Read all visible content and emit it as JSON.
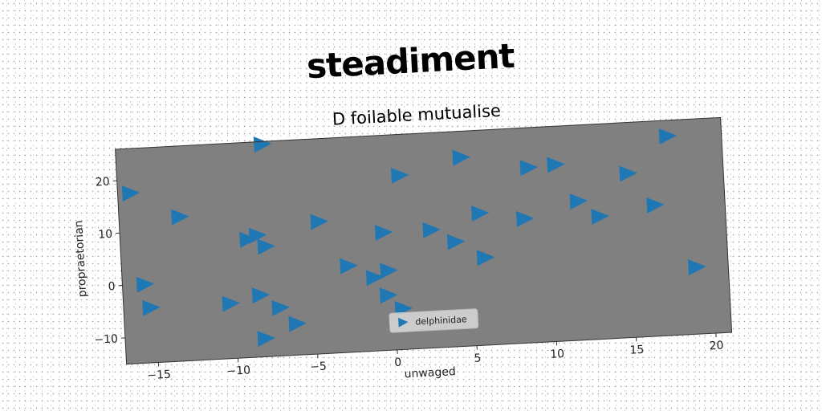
{
  "figure": {
    "suptitle": "steadiment"
  },
  "chart_data": {
    "type": "scatter",
    "title": "D foilable mutualise",
    "xlabel": "unwaged",
    "ylabel": "propraetorian",
    "xlim": [
      -17,
      21
    ],
    "ylim": [
      -15,
      26
    ],
    "xticks": [
      "−15",
      "−10",
      "−5",
      "0",
      "5",
      "10",
      "15",
      "20"
    ],
    "yticks": [
      "−10",
      "0",
      "10",
      "20"
    ],
    "marker": "triangle-right",
    "color": "#1f77b4",
    "axes_facecolor": "#808080",
    "grid": false,
    "legend_position": "bottom-center",
    "series": [
      {
        "name": "delphinidae",
        "points": [
          [
            -16.2,
            17.5
          ],
          [
            -13.2,
            12.5
          ],
          [
            -15.6,
            0
          ],
          [
            -15.3,
            -4.5
          ],
          [
            -10.3,
            -4.5
          ],
          [
            -8.4,
            -3.2
          ],
          [
            -7.2,
            -5.8
          ],
          [
            -6.2,
            -9.0
          ],
          [
            -8.2,
            -11.5
          ],
          [
            -9.0,
            7.5
          ],
          [
            -8.4,
            8.2
          ],
          [
            -7.9,
            6.0
          ],
          [
            -7.8,
            25.5
          ],
          [
            -4.5,
            10.2
          ],
          [
            -2.8,
            1.5
          ],
          [
            -1.2,
            -1.0
          ],
          [
            -0.4,
            -4.5
          ],
          [
            -0.3,
            0.2
          ],
          [
            -0.5,
            7.5
          ],
          [
            0.7,
            18.2
          ],
          [
            2.5,
            7.5
          ],
          [
            4.0,
            5.0
          ],
          [
            4.6,
            21.0
          ],
          [
            5.6,
            10.2
          ],
          [
            5.8,
            1.7
          ],
          [
            8.4,
            8.7
          ],
          [
            8.8,
            18.4
          ],
          [
            10.5,
            18.7
          ],
          [
            11.8,
            11.5
          ],
          [
            13.1,
            8.4
          ],
          [
            15.0,
            16.3
          ],
          [
            16.6,
            10.0
          ],
          [
            17.6,
            23.0
          ],
          [
            19.0,
            -2.2
          ],
          [
            0.5,
            -7.2
          ]
        ]
      }
    ]
  }
}
